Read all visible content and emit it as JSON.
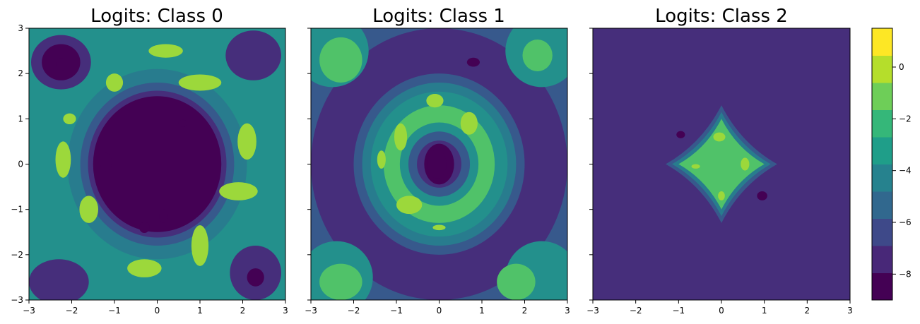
{
  "chart_data": [
    {
      "type": "heatmap",
      "subtype": "filled-contour",
      "title": "Logits: Class 0",
      "xlim": [
        -3,
        3
      ],
      "ylim": [
        -3,
        3
      ],
      "xticks": [
        -3,
        -2,
        -1,
        0,
        1,
        2,
        3
      ],
      "yticks": [
        -3,
        -2,
        -1,
        0,
        1,
        2,
        3
      ],
      "xtick_labels": [
        "−3",
        "−2",
        "−1",
        "0",
        "1",
        "2",
        "3"
      ],
      "ytick_labels": [
        "−3",
        "−2",
        "−1",
        "0",
        "1",
        "2",
        "3"
      ],
      "show_ytick_labels": true,
      "background_level": 0.5,
      "features": [
        {
          "shape": "ellipse",
          "cx": 0,
          "cy": 0,
          "rx": 2.1,
          "ry": 2.1,
          "level": 0.42
        },
        {
          "shape": "ellipse",
          "cx": 0,
          "cy": 0,
          "rx": 1.8,
          "ry": 1.8,
          "level": 0.28
        },
        {
          "shape": "ellipse",
          "cx": 0,
          "cy": 0,
          "rx": 1.62,
          "ry": 1.62,
          "level": 0.13
        },
        {
          "shape": "ellipse",
          "cx": 0,
          "cy": 0,
          "rx": 1.5,
          "ry": 1.5,
          "level": 0.0
        },
        {
          "shape": "ellipse",
          "cx": -2.25,
          "cy": 2.25,
          "rx": 0.7,
          "ry": 0.6,
          "level": 0.13
        },
        {
          "shape": "ellipse",
          "cx": -2.25,
          "cy": 2.25,
          "rx": 0.45,
          "ry": 0.4,
          "level": 0.0
        },
        {
          "shape": "ellipse",
          "cx": -2.25,
          "cy": 2.2,
          "rx": 0.12,
          "ry": 0.14,
          "level": -0.15
        },
        {
          "shape": "ellipse",
          "cx": 2.25,
          "cy": 2.4,
          "rx": 0.65,
          "ry": 0.55,
          "level": 0.13
        },
        {
          "shape": "ellipse",
          "cx": -2.3,
          "cy": -2.6,
          "rx": 0.7,
          "ry": 0.5,
          "level": 0.13
        },
        {
          "shape": "ellipse",
          "cx": 2.3,
          "cy": -2.4,
          "rx": 0.6,
          "ry": 0.6,
          "level": 0.13
        },
        {
          "shape": "ellipse",
          "cx": 2.3,
          "cy": -2.5,
          "rx": 0.2,
          "ry": 0.2,
          "level": 0.0
        },
        {
          "shape": "ellipse",
          "cx": -1.2,
          "cy": 0.05,
          "rx": 0.14,
          "ry": 0.2,
          "level": -0.15
        },
        {
          "shape": "ellipse",
          "cx": -0.3,
          "cy": -1.4,
          "rx": 0.12,
          "ry": 0.12,
          "level": -0.15
        },
        {
          "shape": "ellipse",
          "cx": 0.15,
          "cy": -1.15,
          "rx": 0.1,
          "ry": 0.15,
          "level": -0.15
        },
        {
          "shape": "ellipse",
          "cx": 0.6,
          "cy": 0.9,
          "rx": 0.1,
          "ry": 0.08,
          "level": -0.15
        },
        {
          "shape": "ellipse",
          "cx": 0.2,
          "cy": 2.5,
          "rx": 0.4,
          "ry": 0.15,
          "level": 0.85
        },
        {
          "shape": "ellipse",
          "cx": 1.0,
          "cy": 1.8,
          "rx": 0.5,
          "ry": 0.18,
          "level": 0.85
        },
        {
          "shape": "ellipse",
          "cx": -1.0,
          "cy": 1.8,
          "rx": 0.2,
          "ry": 0.2,
          "level": 0.85
        },
        {
          "shape": "ellipse",
          "cx": 2.1,
          "cy": 0.5,
          "rx": 0.22,
          "ry": 0.4,
          "level": 0.85
        },
        {
          "shape": "ellipse",
          "cx": 1.9,
          "cy": -0.6,
          "rx": 0.45,
          "ry": 0.2,
          "level": 0.85
        },
        {
          "shape": "ellipse",
          "cx": 1.0,
          "cy": -1.8,
          "rx": 0.2,
          "ry": 0.45,
          "level": 0.85
        },
        {
          "shape": "ellipse",
          "cx": -0.3,
          "cy": -2.3,
          "rx": 0.4,
          "ry": 0.2,
          "level": 0.85
        },
        {
          "shape": "ellipse",
          "cx": -1.6,
          "cy": -1.0,
          "rx": 0.22,
          "ry": 0.3,
          "level": 0.85
        },
        {
          "shape": "ellipse",
          "cx": -2.2,
          "cy": 0.1,
          "rx": 0.18,
          "ry": 0.4,
          "level": 0.85
        },
        {
          "shape": "ellipse",
          "cx": -2.05,
          "cy": 1.0,
          "rx": 0.15,
          "ry": 0.12,
          "level": 0.85
        }
      ]
    },
    {
      "type": "heatmap",
      "subtype": "filled-contour",
      "title": "Logits: Class 1",
      "xlim": [
        -3,
        3
      ],
      "ylim": [
        -3,
        3
      ],
      "xticks": [
        -3,
        -2,
        -1,
        0,
        1,
        2,
        3
      ],
      "yticks": [
        -3,
        -2,
        -1,
        0,
        1,
        2,
        3
      ],
      "xtick_labels": [
        "−3",
        "−2",
        "−1",
        "0",
        "1",
        "2",
        "3"
      ],
      "ytick_labels": [
        "",
        "",
        "",
        "",
        "",
        "",
        ""
      ],
      "show_ytick_labels": false,
      "background_level": 0.28,
      "features": [
        {
          "shape": "ellipse",
          "cx": 0,
          "cy": 0,
          "rx": 3.0,
          "ry": 3.0,
          "level": 0.13
        },
        {
          "shape": "ellipse",
          "cx": 0,
          "cy": 0,
          "rx": 2.0,
          "ry": 2.0,
          "level": 0.28
        },
        {
          "shape": "ellipse",
          "cx": 0,
          "cy": 0,
          "rx": 1.8,
          "ry": 1.8,
          "level": 0.42
        },
        {
          "shape": "ellipse",
          "cx": 0,
          "cy": 0,
          "rx": 1.6,
          "ry": 1.6,
          "level": 0.5
        },
        {
          "shape": "ellipse",
          "cx": 0,
          "cy": 0,
          "rx": 1.3,
          "ry": 1.3,
          "level": 0.72
        },
        {
          "shape": "ellipse",
          "cx": 0,
          "cy": 0,
          "rx": 0.92,
          "ry": 0.92,
          "level": 0.5
        },
        {
          "shape": "ellipse",
          "cx": 0,
          "cy": 0,
          "rx": 0.72,
          "ry": 0.72,
          "level": 0.28
        },
        {
          "shape": "ellipse",
          "cx": 0,
          "cy": 0,
          "rx": 0.52,
          "ry": 0.52,
          "level": 0.13
        },
        {
          "shape": "ellipse",
          "cx": 0,
          "cy": 0,
          "rx": 0.35,
          "ry": 0.45,
          "level": 0.0
        },
        {
          "shape": "ellipse",
          "cx": -0.05,
          "cy": 0.0,
          "rx": 0.22,
          "ry": 0.32,
          "level": -0.15
        },
        {
          "shape": "ellipse",
          "cx": -2.5,
          "cy": 2.5,
          "rx": 0.85,
          "ry": 0.8,
          "level": 0.5
        },
        {
          "shape": "ellipse",
          "cx": -2.3,
          "cy": 2.3,
          "rx": 0.5,
          "ry": 0.5,
          "level": 0.72
        },
        {
          "shape": "ellipse",
          "cx": 2.4,
          "cy": 2.5,
          "rx": 0.85,
          "ry": 0.8,
          "level": 0.5
        },
        {
          "shape": "ellipse",
          "cx": 2.3,
          "cy": 2.4,
          "rx": 0.35,
          "ry": 0.35,
          "level": 0.72
        },
        {
          "shape": "ellipse",
          "cx": -2.4,
          "cy": -2.5,
          "rx": 0.85,
          "ry": 0.8,
          "level": 0.5
        },
        {
          "shape": "ellipse",
          "cx": -2.3,
          "cy": -2.6,
          "rx": 0.5,
          "ry": 0.4,
          "level": 0.72
        },
        {
          "shape": "ellipse",
          "cx": 2.4,
          "cy": -2.5,
          "rx": 0.85,
          "ry": 0.8,
          "level": 0.5
        },
        {
          "shape": "ellipse",
          "cx": 1.8,
          "cy": -2.6,
          "rx": 0.45,
          "ry": 0.4,
          "level": 0.72
        },
        {
          "shape": "ellipse",
          "cx": 0.8,
          "cy": 2.25,
          "rx": 0.15,
          "ry": 0.1,
          "level": -0.15
        },
        {
          "shape": "ellipse",
          "cx": -0.9,
          "cy": 0.6,
          "rx": 0.15,
          "ry": 0.3,
          "level": 0.85
        },
        {
          "shape": "ellipse",
          "cx": -0.1,
          "cy": 1.4,
          "rx": 0.2,
          "ry": 0.15,
          "level": 0.85
        },
        {
          "shape": "ellipse",
          "cx": 0.7,
          "cy": 0.9,
          "rx": 0.2,
          "ry": 0.25,
          "level": 0.85
        },
        {
          "shape": "ellipse",
          "cx": -0.7,
          "cy": -0.9,
          "rx": 0.3,
          "ry": 0.2,
          "level": 0.85
        },
        {
          "shape": "ellipse",
          "cx": 0.0,
          "cy": -1.4,
          "rx": 0.15,
          "ry": 0.06,
          "level": 0.85
        },
        {
          "shape": "ellipse",
          "cx": -1.35,
          "cy": 0.1,
          "rx": 0.1,
          "ry": 0.2,
          "level": 0.85
        }
      ]
    },
    {
      "type": "heatmap",
      "subtype": "filled-contour",
      "title": "Logits: Class 2",
      "xlim": [
        -3,
        3
      ],
      "ylim": [
        -3,
        3
      ],
      "xticks": [
        -3,
        -2,
        -1,
        0,
        1,
        2,
        3
      ],
      "yticks": [
        -3,
        -2,
        -1,
        0,
        1,
        2,
        3
      ],
      "xtick_labels": [
        "−3",
        "−2",
        "−1",
        "0",
        "1",
        "2",
        "3"
      ],
      "ytick_labels": [
        "",
        "",
        "",
        "",
        "",
        "",
        ""
      ],
      "show_ytick_labels": false,
      "background_level": 0.13,
      "features": [
        {
          "shape": "diamond",
          "cx": 0,
          "cy": 0,
          "r": 1.3,
          "level": 0.28
        },
        {
          "shape": "diamond",
          "cx": 0,
          "cy": 0,
          "r": 1.15,
          "level": 0.42
        },
        {
          "shape": "diamond",
          "cx": 0,
          "cy": 0,
          "r": 1.0,
          "level": 0.72
        },
        {
          "shape": "ellipse",
          "cx": -0.95,
          "cy": 0.65,
          "rx": 0.1,
          "ry": 0.08,
          "level": -0.15
        },
        {
          "shape": "ellipse",
          "cx": 0.95,
          "cy": -0.7,
          "rx": 0.12,
          "ry": 0.1,
          "level": -0.15
        },
        {
          "shape": "ellipse",
          "cx": -0.05,
          "cy": 0.6,
          "rx": 0.14,
          "ry": 0.1,
          "level": 0.85
        },
        {
          "shape": "ellipse",
          "cx": 0.55,
          "cy": 0.0,
          "rx": 0.1,
          "ry": 0.14,
          "level": 0.85
        },
        {
          "shape": "ellipse",
          "cx": 0.0,
          "cy": -0.7,
          "rx": 0.08,
          "ry": 0.1,
          "level": 0.85
        },
        {
          "shape": "ellipse",
          "cx": -0.6,
          "cy": -0.05,
          "rx": 0.1,
          "ry": 0.05,
          "level": 0.85
        }
      ]
    }
  ],
  "colorbar": {
    "colormap": "viridis",
    "range": [
      -9,
      1.5
    ],
    "ticks": [
      0,
      -2,
      -4,
      -6,
      -8
    ],
    "tick_labels": [
      "0",
      "−2",
      "−4",
      "−6",
      "−8"
    ]
  },
  "colors": {
    "viridis_stops": [
      "#440154",
      "#482878",
      "#3e4989",
      "#31688e",
      "#26828e",
      "#1f9e89",
      "#35b779",
      "#6ece58",
      "#b5de2b",
      "#fde725"
    ]
  }
}
